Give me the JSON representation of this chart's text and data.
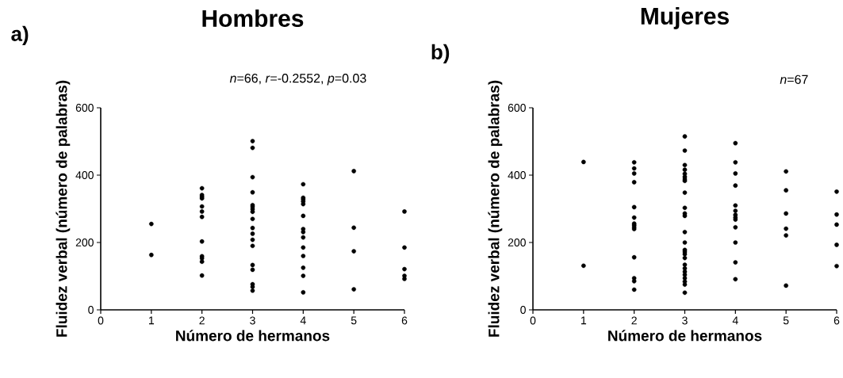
{
  "chart_data": [
    {
      "type": "scatter",
      "title": "Hombres",
      "xlabel": "Número de hermanos",
      "ylabel": "Fluidez verbal (número de palabras)",
      "annotations": [
        "a)",
        "*n*=66, *r*=-0.2552, *p*=0.03"
      ],
      "xlim": [
        0,
        6
      ],
      "ylim": [
        0,
        600
      ],
      "xticks": [
        0,
        1,
        2,
        3,
        4,
        5,
        6
      ],
      "yticks": [
        0,
        200,
        400,
        600
      ],
      "marker": "circle",
      "series": [
        {
          "color": "#000000",
          "x": [
            1,
            1,
            2,
            2,
            2,
            2,
            2,
            2,
            2,
            2,
            2,
            2,
            2,
            2,
            3,
            3,
            3,
            3,
            3,
            3,
            3,
            3,
            3,
            3,
            3,
            3,
            3,
            3,
            3,
            3,
            3,
            3,
            4,
            4,
            4,
            4,
            4,
            4,
            4,
            4,
            4,
            4,
            4,
            4,
            4,
            4,
            5,
            5,
            5,
            5,
            6,
            6,
            6,
            6,
            6
          ],
          "values": [
            255,
            163,
            361,
            341,
            336,
            331,
            307,
            292,
            276,
            203,
            159,
            153,
            143,
            102,
            501,
            481,
            394,
            349,
            311,
            306,
            299,
            291,
            270,
            243,
            226,
            208,
            190,
            133,
            119,
            76,
            68,
            57,
            373,
            333,
            328,
            322,
            314,
            279,
            240,
            231,
            215,
            185,
            160,
            125,
            101,
            52,
            412,
            244,
            174,
            61,
            292,
            185,
            121,
            101,
            92
          ]
        }
      ]
    },
    {
      "type": "scatter",
      "title": "Mujeres",
      "xlabel": "Número de hermanos",
      "ylabel": "Fluidez verbal (número de palabras)",
      "annotations": [
        "b)",
        "*n*=67"
      ],
      "xlim": [
        0,
        6
      ],
      "ylim": [
        0,
        600
      ],
      "xticks": [
        0,
        1,
        2,
        3,
        4,
        5,
        6
      ],
      "yticks": [
        0,
        200,
        400,
        600
      ],
      "marker": "circle",
      "series": [
        {
          "color": "#000000",
          "x": [
            1,
            1,
            2,
            2,
            2,
            2,
            2,
            2,
            2,
            2,
            2,
            2,
            2,
            2,
            2,
            2,
            3,
            3,
            3,
            3,
            3,
            3,
            3,
            3,
            3,
            3,
            3,
            3,
            3,
            3,
            3,
            3,
            3,
            3,
            3,
            3,
            3,
            3,
            3,
            3,
            3,
            3,
            4,
            4,
            4,
            4,
            4,
            4,
            4,
            4,
            4,
            4,
            4,
            4,
            4,
            5,
            5,
            5,
            5,
            5,
            5,
            6,
            6,
            6,
            6,
            6
          ],
          "values": [
            439,
            131,
            438,
            420,
            405,
            379,
            305,
            274,
            256,
            251,
            245,
            240,
            156,
            94,
            85,
            60,
            515,
            473,
            430,
            416,
            404,
            395,
            388,
            383,
            348,
            303,
            286,
            279,
            231,
            200,
            178,
            172,
            165,
            154,
            134,
            123,
            113,
            104,
            94,
            84,
            75,
            51,
            495,
            438,
            405,
            369,
            310,
            294,
            282,
            274,
            268,
            245,
            200,
            141,
            91,
            411,
            355,
            286,
            241,
            221,
            72,
            351,
            283,
            253,
            193,
            130
          ]
        }
      ]
    }
  ]
}
